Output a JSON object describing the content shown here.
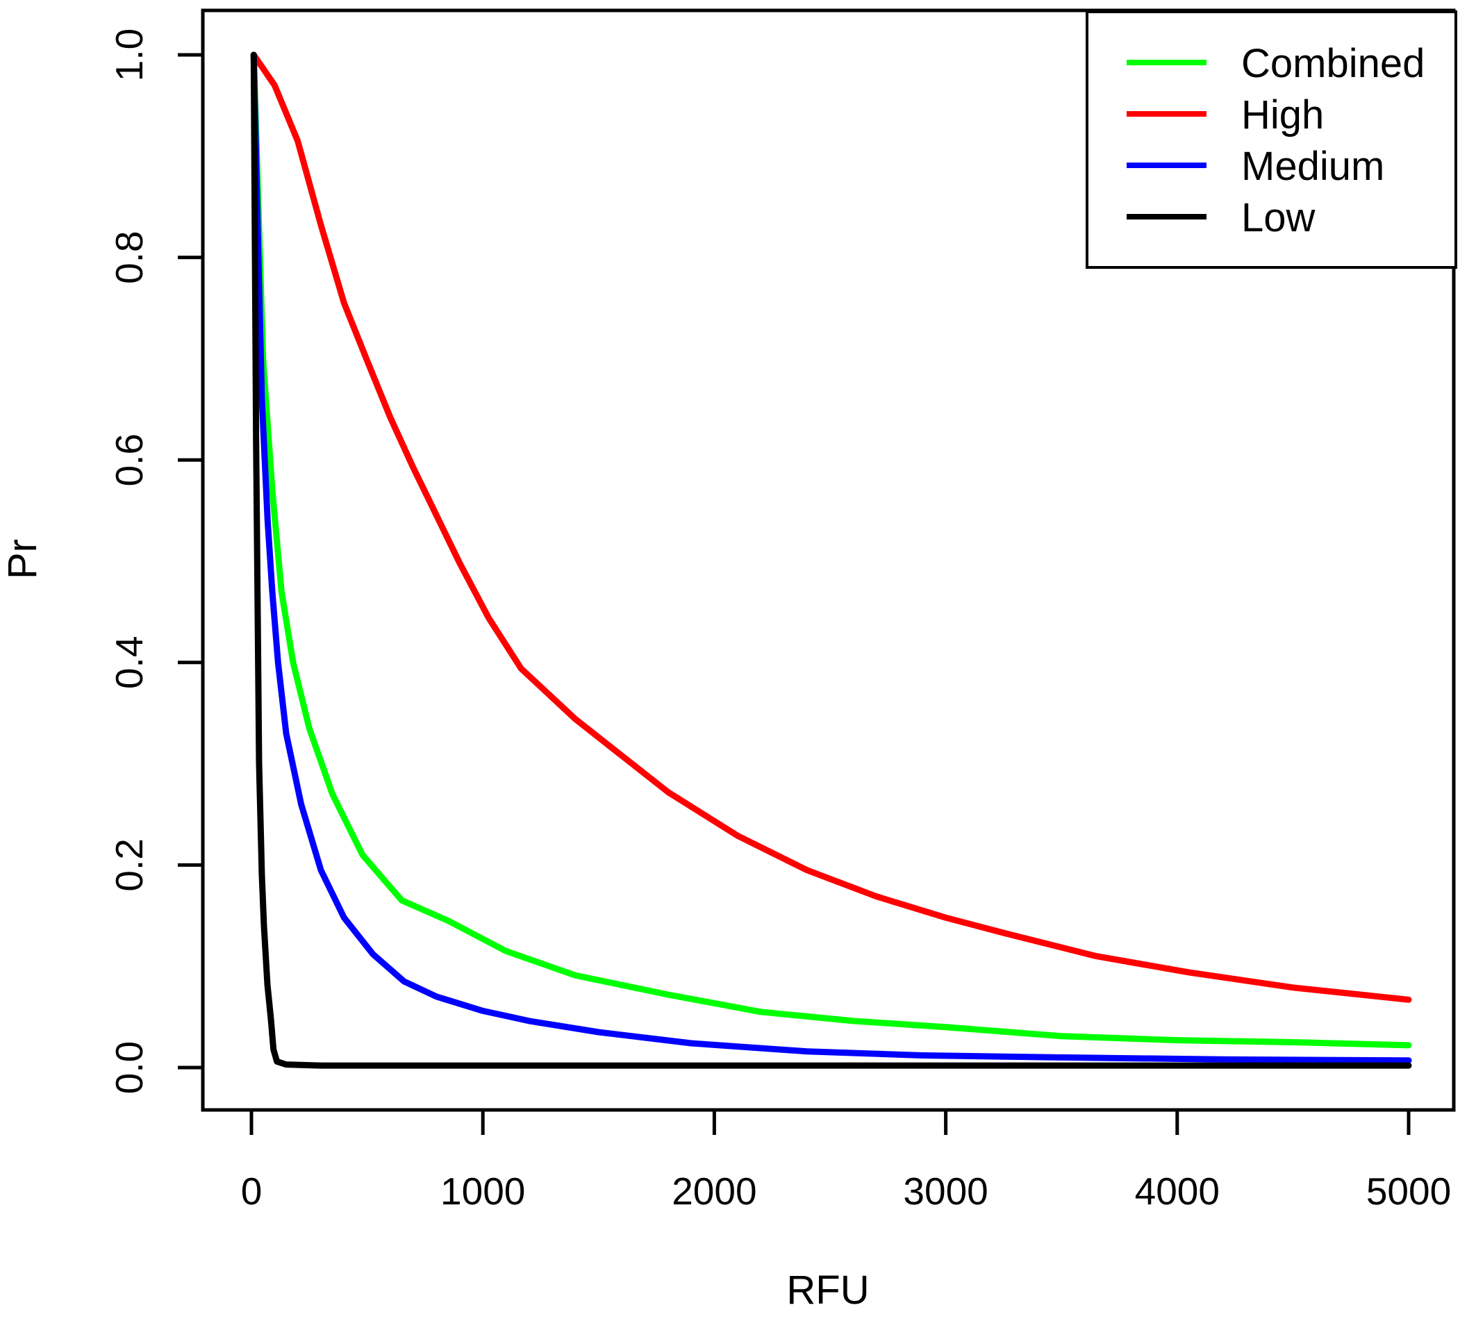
{
  "figure": {
    "background": "#FFFFFF",
    "axis_color": "#000000",
    "xlabel": "RFU",
    "ylabel": "Pr",
    "x_tick_labels": [
      "0",
      "1000",
      "2000",
      "3000",
      "4000",
      "5000"
    ],
    "x_tick_values": [
      0,
      1000,
      2000,
      3000,
      4000,
      5000
    ],
    "y_tick_labels": [
      "0.0",
      "0.2",
      "0.4",
      "0.6",
      "0.8",
      "1.0"
    ],
    "y_tick_values": [
      0,
      0.2,
      0.4,
      0.6,
      0.8,
      1.0
    ]
  },
  "legend": {
    "position": "topright",
    "entries": [
      {
        "label": "Combined",
        "color": "#00FF00"
      },
      {
        "label": "High",
        "color": "#FF0000"
      },
      {
        "label": "Medium",
        "color": "#0000FF"
      },
      {
        "label": "Low",
        "color": "#000000"
      }
    ]
  },
  "chart_data": {
    "type": "line",
    "title": "",
    "xlabel": "RFU",
    "ylabel": "Pr",
    "xlim": [
      0,
      5000
    ],
    "ylim": [
      0,
      1
    ],
    "grid": false,
    "legend_position": "topright",
    "series": [
      {
        "name": "Combined",
        "color": "#00FF00",
        "x": [
          10,
          50,
          90,
          130,
          180,
          250,
          350,
          480,
          650,
          850,
          1100,
          1400,
          1800,
          2200,
          2600,
          3000,
          3500,
          4000,
          4500,
          5000
        ],
        "y": [
          1.0,
          0.7,
          0.57,
          0.47,
          0.4,
          0.335,
          0.27,
          0.21,
          0.165,
          0.145,
          0.115,
          0.091,
          0.072,
          0.055,
          0.046,
          0.04,
          0.031,
          0.027,
          0.025,
          0.022
        ]
      },
      {
        "name": "High",
        "color": "#FF0000",
        "x": [
          10,
          100,
          200,
          300,
          400,
          500,
          600,
          700,
          800,
          900,
          1025,
          1165,
          1400,
          1800,
          2100,
          2400,
          2700,
          3000,
          3250,
          3650,
          4050,
          4500,
          5000
        ],
        "y": [
          1.0,
          0.97,
          0.915,
          0.832,
          0.755,
          0.698,
          0.642,
          0.592,
          0.545,
          0.498,
          0.444,
          0.394,
          0.344,
          0.272,
          0.229,
          0.195,
          0.169,
          0.148,
          0.133,
          0.11,
          0.094,
          0.079,
          0.067
        ]
      },
      {
        "name": "Medium",
        "color": "#0000FF",
        "x": [
          10,
          30,
          45,
          70,
          90,
          115,
          150,
          215,
          300,
          400,
          525,
          660,
          800,
          1000,
          1200,
          1500,
          1900,
          2400,
          2900,
          3500,
          4200,
          5000
        ],
        "y": [
          1.0,
          0.8,
          0.66,
          0.54,
          0.47,
          0.4,
          0.33,
          0.26,
          0.195,
          0.148,
          0.112,
          0.085,
          0.07,
          0.056,
          0.046,
          0.035,
          0.024,
          0.016,
          0.012,
          0.01,
          0.008,
          0.007
        ]
      },
      {
        "name": "Low",
        "color": "#000000",
        "x": [
          10,
          20,
          33,
          45,
          54,
          69,
          84,
          95,
          110,
          150,
          300,
          1000,
          2000,
          3000,
          4000,
          5000
        ],
        "y": [
          1.0,
          0.62,
          0.3,
          0.19,
          0.14,
          0.082,
          0.048,
          0.018,
          0.006,
          0.003,
          0.002,
          0.002,
          0.002,
          0.002,
          0.002,
          0.002
        ]
      }
    ]
  }
}
